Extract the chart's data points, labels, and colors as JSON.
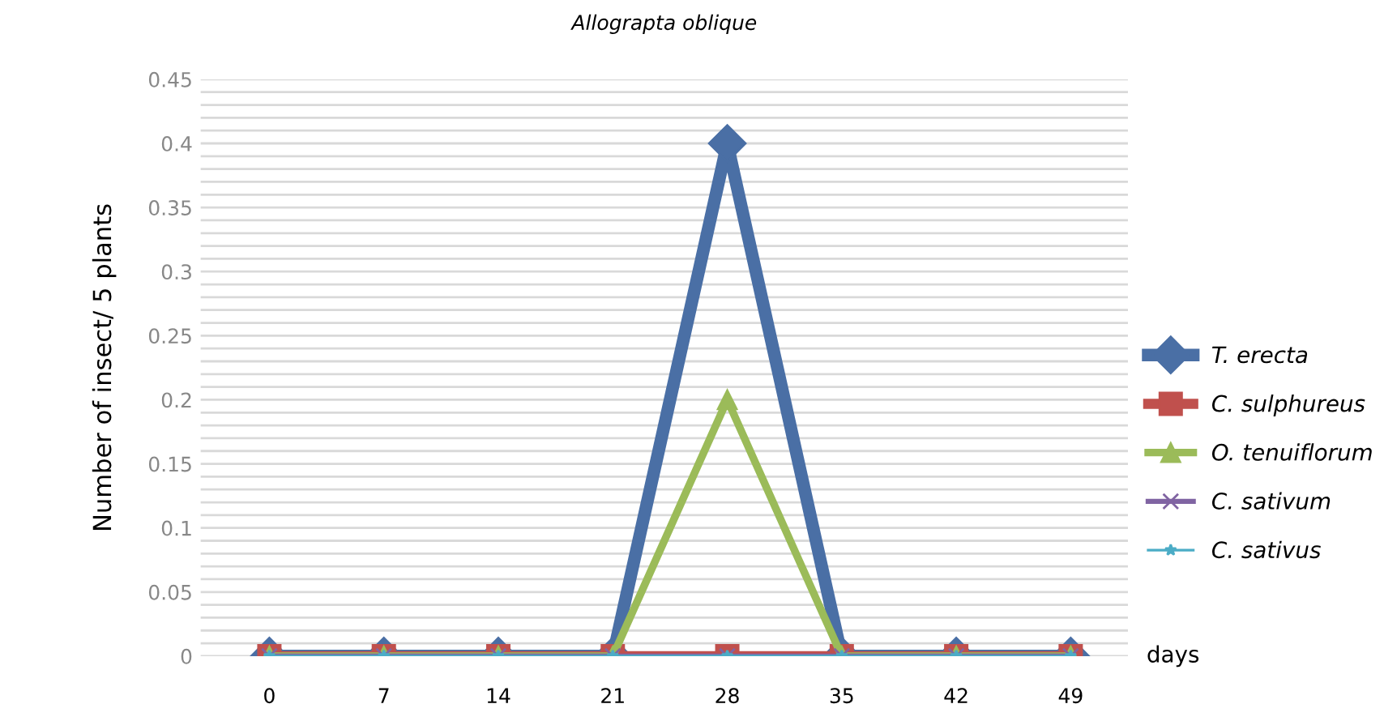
{
  "chart_data": {
    "type": "line",
    "title": "Allograpta oblique",
    "xlabel": "days",
    "ylabel": "Number of insect/ 5 plants",
    "categories": [
      "0",
      "7",
      "14",
      "21",
      "28",
      "35",
      "42",
      "49"
    ],
    "series": [
      {
        "name": "T. erecta",
        "color": "#4a6fa5",
        "marker": "diamond",
        "values": [
          0,
          0,
          0,
          0,
          0.4,
          0,
          0,
          0
        ]
      },
      {
        "name": "C. sulphureus",
        "color": "#c0504d",
        "marker": "square",
        "values": [
          0,
          0,
          0,
          0,
          0,
          0,
          0,
          0
        ]
      },
      {
        "name": "O. tenuiflorum",
        "color": "#9bbb59",
        "marker": "triangle",
        "values": [
          0,
          0,
          0,
          0,
          0.2,
          0,
          0,
          0
        ]
      },
      {
        "name": "C. sativum",
        "color": "#8064a2",
        "marker": "cross",
        "values": [
          0,
          0,
          0,
          0,
          0,
          0,
          0,
          0
        ]
      },
      {
        "name": "C. sativus",
        "color": "#4bacc6",
        "marker": "star",
        "values": [
          0,
          0,
          0,
          0,
          0,
          0,
          0,
          0
        ]
      }
    ],
    "ylim": [
      0,
      0.45
    ],
    "yticks": [
      0,
      {
        "value": 0.01,
        "label": null
      },
      {
        "value": 0.02,
        "label": null
      },
      {
        "value": 0.03,
        "label": null
      },
      {
        "value": 0.04,
        "label": null
      },
      0.05,
      {
        "value": 0.06,
        "label": null
      },
      {
        "value": 0.07,
        "label": null
      },
      {
        "value": 0.08,
        "label": null
      },
      {
        "value": 0.09,
        "label": null
      },
      0.1,
      {
        "value": 0.11,
        "label": null
      },
      {
        "value": 0.12,
        "label": null
      },
      {
        "value": 0.13,
        "label": null
      },
      {
        "value": 0.14,
        "label": null
      },
      0.15,
      {
        "value": 0.16,
        "label": null
      },
      {
        "value": 0.17,
        "label": null
      },
      {
        "value": 0.18,
        "label": null
      },
      {
        "value": 0.19,
        "label": null
      },
      0.2,
      {
        "value": 0.21,
        "label": null
      },
      {
        "value": 0.22,
        "label": null
      },
      {
        "value": 0.23,
        "label": null
      },
      {
        "value": 0.24,
        "label": null
      },
      0.25,
      {
        "value": 0.26,
        "label": null
      },
      {
        "value": 0.27,
        "label": null
      },
      {
        "value": 0.28,
        "label": null
      },
      {
        "value": 0.29,
        "label": null
      },
      0.3,
      {
        "value": 0.31,
        "label": null
      },
      {
        "value": 0.32,
        "label": null
      },
      {
        "value": 0.33,
        "label": null
      },
      {
        "value": 0.34,
        "label": null
      },
      0.35,
      {
        "value": 0.36,
        "label": null
      },
      {
        "value": 0.37,
        "label": null
      },
      {
        "value": 0.38,
        "label": null
      },
      {
        "value": 0.39,
        "label": null
      },
      0.4,
      {
        "value": 0.41,
        "label": null
      },
      {
        "value": 0.42,
        "label": null
      },
      {
        "value": 0.43,
        "label": null
      },
      {
        "value": 0.44,
        "label": null
      },
      0.45
    ],
    "grid": "y",
    "legend": "right",
    "line_style": "solid"
  }
}
